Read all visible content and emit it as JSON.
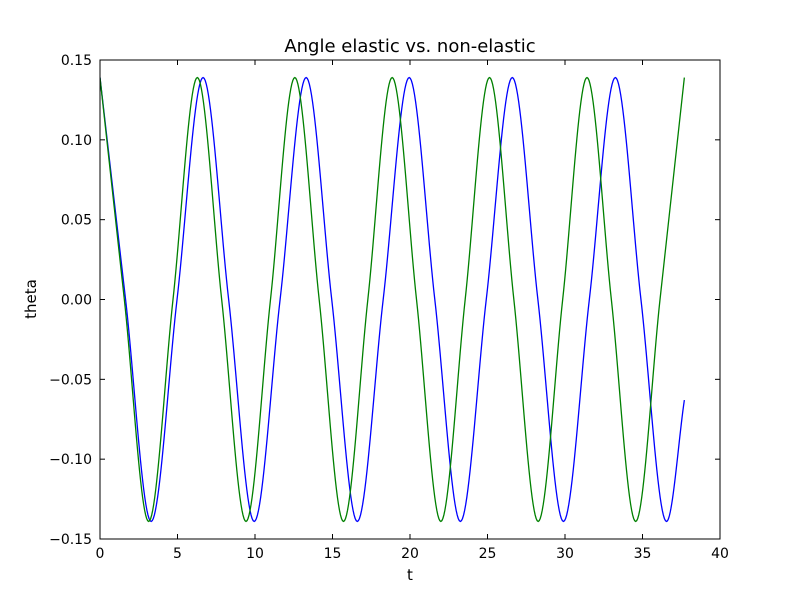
{
  "chart_data": {
    "type": "line",
    "title": "Angle elastic vs. non-elastic",
    "xlabel": "t",
    "ylabel": "theta",
    "xlim": [
      0,
      40
    ],
    "ylim": [
      -0.15,
      0.15
    ],
    "xticks": [
      0,
      5,
      10,
      15,
      20,
      25,
      30,
      35,
      40
    ],
    "xtick_labels": [
      "0",
      "5",
      "10",
      "15",
      "20",
      "25",
      "30",
      "35",
      "40"
    ],
    "yticks": [
      0.15,
      0.1,
      0.05,
      0.0,
      -0.05,
      -0.1,
      -0.15
    ],
    "ytick_labels": [
      "0.15",
      "0.10",
      "0.05",
      "0.00",
      "−0.05",
      "−0.10",
      "−0.15"
    ],
    "grid": false,
    "legend": "none",
    "series": [
      {
        "color": "#0000ff",
        "x": [
          0,
          1.65,
          3.3,
          4.97,
          6.65,
          8.3,
          9.95,
          11.62,
          13.3,
          14.95,
          16.6,
          18.27,
          19.95,
          21.6,
          23.25,
          24.92,
          26.6,
          28.25,
          29.9,
          31.57,
          33.25,
          34.9,
          36.55,
          37.7
        ],
        "y": [
          0.139,
          0,
          -0.139,
          0,
          0.139,
          0,
          -0.139,
          0,
          0.139,
          0,
          -0.139,
          0,
          0.139,
          0,
          -0.139,
          0,
          0.139,
          0,
          -0.139,
          0,
          0.139,
          0,
          -0.139,
          -0.063
        ]
      },
      {
        "color": "#008000",
        "x": [
          0,
          1.57,
          3.14,
          4.71,
          6.28,
          7.85,
          9.42,
          11.0,
          12.57,
          14.14,
          15.71,
          17.28,
          18.85,
          20.42,
          21.99,
          23.56,
          25.13,
          26.7,
          28.27,
          29.85,
          31.42,
          32.99,
          34.56,
          36.13,
          37.7
        ],
        "y": [
          0.139,
          0,
          -0.139,
          0,
          0.139,
          0,
          -0.139,
          0,
          0.139,
          0,
          -0.139,
          0,
          0.139,
          0,
          -0.139,
          0,
          0.139,
          0,
          -0.139,
          0,
          0.139,
          0,
          -0.139,
          0,
          0.139
        ]
      }
    ]
  }
}
